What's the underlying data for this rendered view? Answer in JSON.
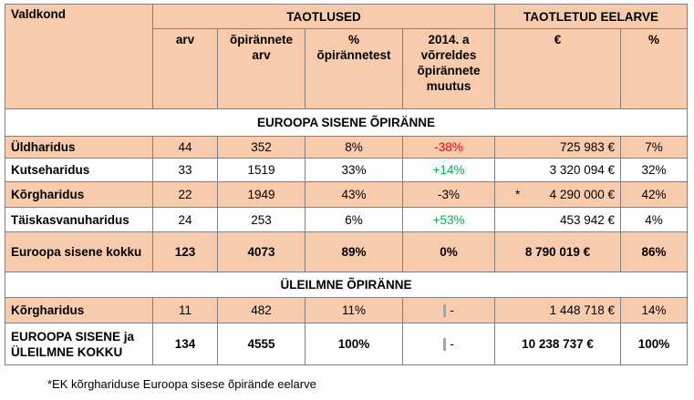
{
  "header": {
    "valdkond": "Valdkond",
    "taotlused": "TAOTLUSED",
    "eelarve": "TAOTLETUD EELARVE",
    "arv": "arv",
    "opirannete_arv": "õpirännete arv",
    "pct_opirannetest": "% õpirännetest",
    "muutus": "2014. a võrreldes õpirännete muutus",
    "eur": "€",
    "pct": "%"
  },
  "sections": {
    "euroopa": "EUROOPA SISENE ÕPIRÄNNE",
    "uleilmne": "ÜLEILMNE ÕPIRÄNNE"
  },
  "rows": [
    {
      "name": "Üldharidus",
      "arv": "44",
      "opirannete": "352",
      "pct": "8%",
      "muutus": "-38%",
      "eur": "725 983 €",
      "eur_pct": "7%"
    },
    {
      "name": "Kutseharidus",
      "arv": "33",
      "opirannete": "1519",
      "pct": "33%",
      "muutus": "+14%",
      "eur": "3 320 094 €",
      "eur_pct": "32%"
    },
    {
      "name": "Kõrgharidus",
      "arv": "22",
      "opirannete": "1949",
      "pct": "43%",
      "muutus": "-3%",
      "eur_star": "*",
      "eur": "4 290 000 €",
      "eur_pct": "42%"
    },
    {
      "name": "Täiskasvanuharidus",
      "arv": "24",
      "opirannete": "253",
      "pct": "6%",
      "muutus": "+53%",
      "eur": "453 942 €",
      "eur_pct": "4%"
    }
  ],
  "euroopa_total": {
    "name": "Euroopa sisene kokku",
    "arv": "123",
    "opirannete": "4073",
    "pct": "89%",
    "muutus": "0%",
    "eur": "8 790 019 €",
    "eur_pct": "86%"
  },
  "global_row": {
    "name": "Kõrgharidus",
    "arv": "11",
    "opirannete": "482",
    "pct": "11%",
    "muutus": "-",
    "eur": "1 448 718 €",
    "eur_pct": "14%"
  },
  "grand_total": {
    "name": "EUROOPA SISENE ja ÜLEILMNE KOKKU",
    "arv": "134",
    "opirannete": "4555",
    "pct": "100%",
    "muutus": "-",
    "eur": "10 238 737 €",
    "eur_pct": "100%"
  },
  "footnote": "*EK kõrghariduse Euroopa sisese õpirände eelarve",
  "colors": {
    "header_bg": "#f8cbad",
    "negative": "#ff0000",
    "positive": "#00b050"
  }
}
